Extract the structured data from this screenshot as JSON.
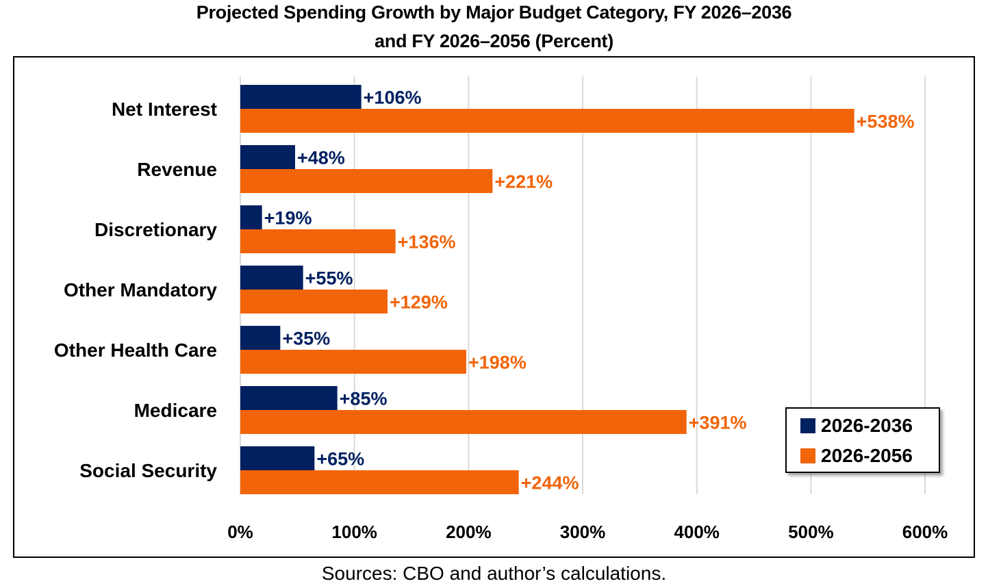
{
  "chart_data": {
    "type": "bar",
    "orientation": "horizontal",
    "title": "Projected Spending Growth by Major Budget Category, FY 2026–2036",
    "title_line2": "and FY 2026–2056 (Percent)",
    "categories": [
      "Net Interest",
      "Revenue",
      "Discretionary",
      "Other Mandatory",
      "Other Health Care",
      "Medicare",
      "Social Security"
    ],
    "series": [
      {
        "name": "2026-2036",
        "color": "#002060",
        "values": [
          106,
          48,
          19,
          55,
          35,
          85,
          65
        ],
        "labels": [
          "+106%",
          "+48%",
          "+19%",
          "+55%",
          "+35%",
          "+85%",
          "+65%"
        ]
      },
      {
        "name": "2026-2056",
        "color": "#F26409",
        "values": [
          538,
          221,
          136,
          129,
          198,
          391,
          244
        ],
        "labels": [
          "+538%",
          "+221%",
          "+136%",
          "+129%",
          "+198%",
          "+391%",
          "+244%"
        ]
      }
    ],
    "xlim": [
      0,
      600
    ],
    "xticks": [
      0,
      100,
      200,
      300,
      400,
      500,
      600
    ],
    "xtick_labels": [
      "0%",
      "100%",
      "200%",
      "300%",
      "400%",
      "500%",
      "600%"
    ],
    "xlabel": "",
    "ylabel": "",
    "grid": "vertical",
    "legend_position": "bottom-right"
  },
  "source": "Sources: CBO and author’s calculations."
}
